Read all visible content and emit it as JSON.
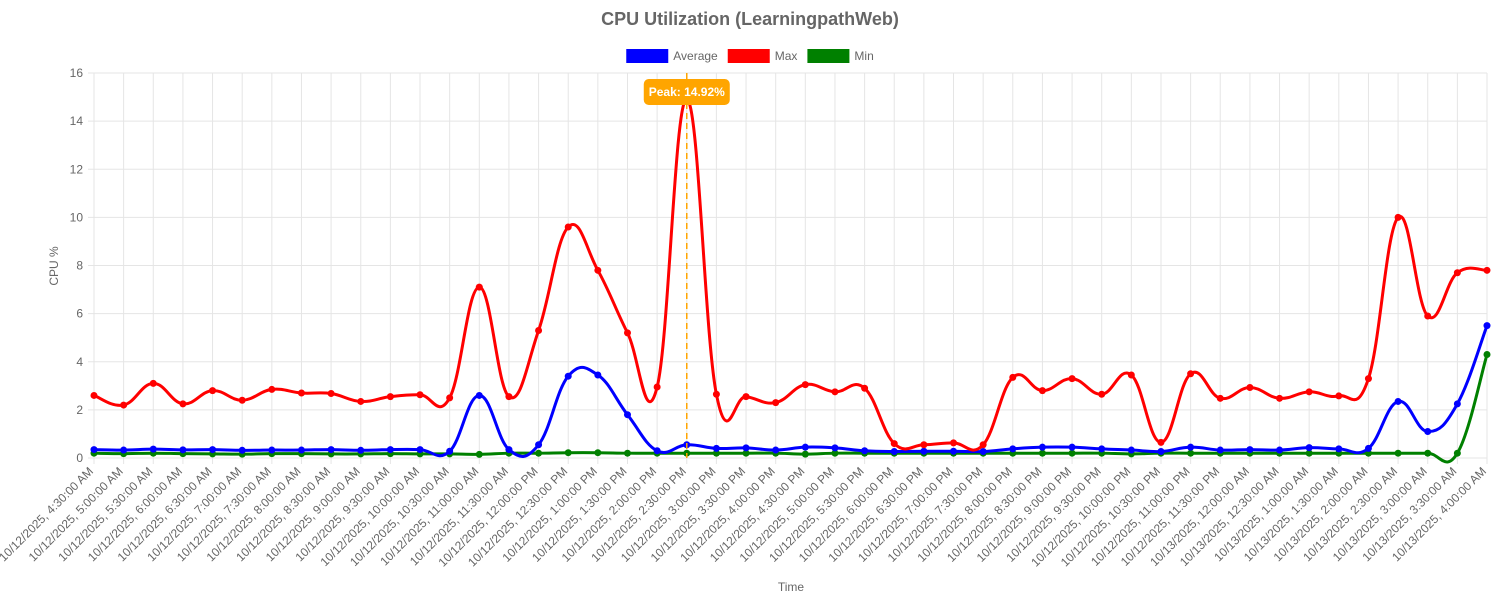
{
  "chart_data": {
    "type": "line",
    "title": "CPU Utilization (LearningpathWeb)",
    "xlabel": "Time",
    "ylabel": "CPU %",
    "ylim": [
      0,
      16
    ],
    "y_ticks": [
      0,
      2,
      4,
      6,
      8,
      10,
      12,
      14,
      16
    ],
    "grid": true,
    "legend_position": "top",
    "categories": [
      "10/12/2025, 4:30:00 AM",
      "10/12/2025, 5:00:00 AM",
      "10/12/2025, 5:30:00 AM",
      "10/12/2025, 6:00:00 AM",
      "10/12/2025, 6:30:00 AM",
      "10/12/2025, 7:00:00 AM",
      "10/12/2025, 7:30:00 AM",
      "10/12/2025, 8:00:00 AM",
      "10/12/2025, 8:30:00 AM",
      "10/12/2025, 9:00:00 AM",
      "10/12/2025, 9:30:00 AM",
      "10/12/2025, 10:00:00 AM",
      "10/12/2025, 10:30:00 AM",
      "10/12/2025, 11:00:00 AM",
      "10/12/2025, 11:30:00 AM",
      "10/12/2025, 12:00:00 PM",
      "10/12/2025, 12:30:00 PM",
      "10/12/2025, 1:00:00 PM",
      "10/12/2025, 1:30:00 PM",
      "10/12/2025, 2:00:00 PM",
      "10/12/2025, 2:30:00 PM",
      "10/12/2025, 3:00:00 PM",
      "10/12/2025, 3:30:00 PM",
      "10/12/2025, 4:00:00 PM",
      "10/12/2025, 4:30:00 PM",
      "10/12/2025, 5:00:00 PM",
      "10/12/2025, 5:30:00 PM",
      "10/12/2025, 6:00:00 PM",
      "10/12/2025, 6:30:00 PM",
      "10/12/2025, 7:00:00 PM",
      "10/12/2025, 7:30:00 PM",
      "10/12/2025, 8:00:00 PM",
      "10/12/2025, 8:30:00 PM",
      "10/12/2025, 9:00:00 PM",
      "10/12/2025, 9:30:00 PM",
      "10/12/2025, 10:00:00 PM",
      "10/12/2025, 10:30:00 PM",
      "10/12/2025, 11:00:00 PM",
      "10/12/2025, 11:30:00 PM",
      "10/13/2025, 12:00:00 AM",
      "10/13/2025, 12:30:00 AM",
      "10/13/2025, 1:00:00 AM",
      "10/13/2025, 1:30:00 AM",
      "10/13/2025, 2:00:00 AM",
      "10/13/2025, 2:30:00 AM",
      "10/13/2025, 3:00:00 AM",
      "10/13/2025, 3:30:00 AM",
      "10/13/2025, 4:00:00 AM"
    ],
    "series": [
      {
        "name": "Average",
        "color": "#0000ff",
        "values": [
          0.35,
          0.33,
          0.37,
          0.34,
          0.35,
          0.32,
          0.33,
          0.33,
          0.35,
          0.32,
          0.35,
          0.35,
          0.28,
          2.6,
          0.35,
          0.55,
          3.4,
          3.45,
          1.8,
          0.3,
          0.55,
          0.4,
          0.42,
          0.33,
          0.45,
          0.42,
          0.3,
          0.27,
          0.28,
          0.28,
          0.27,
          0.38,
          0.45,
          0.45,
          0.38,
          0.33,
          0.27,
          0.45,
          0.33,
          0.35,
          0.33,
          0.43,
          0.38,
          0.4,
          2.35,
          1.1,
          2.25,
          5.5
        ]
      },
      {
        "name": "Max",
        "color": "#ff0000",
        "values": [
          2.6,
          2.2,
          3.1,
          2.25,
          2.8,
          2.4,
          2.85,
          2.7,
          2.68,
          2.35,
          2.55,
          2.63,
          2.5,
          7.1,
          2.55,
          5.3,
          9.6,
          7.8,
          5.2,
          2.95,
          14.92,
          2.65,
          2.55,
          2.3,
          3.05,
          2.75,
          2.9,
          0.6,
          0.55,
          0.63,
          0.55,
          3.35,
          2.8,
          3.3,
          2.65,
          3.45,
          0.65,
          3.5,
          2.48,
          2.93,
          2.48,
          2.75,
          2.58,
          3.3,
          10.0,
          5.9,
          7.7,
          7.8
        ]
      },
      {
        "name": "Min",
        "color": "#008000",
        "values": [
          0.2,
          0.18,
          0.2,
          0.18,
          0.17,
          0.16,
          0.18,
          0.18,
          0.17,
          0.17,
          0.18,
          0.17,
          0.17,
          0.15,
          0.2,
          0.2,
          0.22,
          0.22,
          0.2,
          0.2,
          0.2,
          0.2,
          0.2,
          0.2,
          0.16,
          0.2,
          0.2,
          0.2,
          0.2,
          0.2,
          0.2,
          0.2,
          0.2,
          0.2,
          0.2,
          0.17,
          0.2,
          0.2,
          0.2,
          0.2,
          0.2,
          0.2,
          0.2,
          0.2,
          0.2,
          0.2,
          0.2,
          4.3
        ]
      }
    ],
    "annotation": {
      "label": "Peak: 14.92%",
      "x_category": "10/12/2025, 2:30:00 PM",
      "value": 14.92,
      "color": "#ffa500"
    }
  }
}
